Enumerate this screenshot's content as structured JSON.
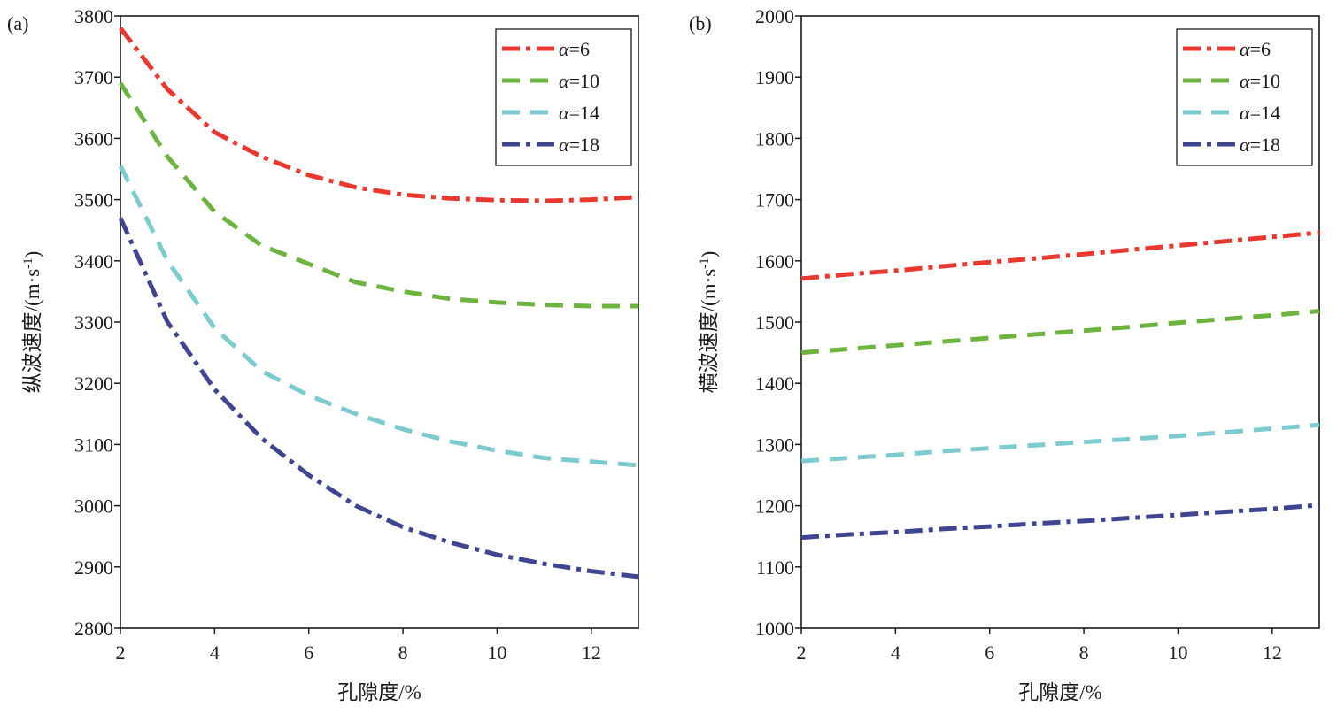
{
  "chart_data": [
    {
      "panel_label": "(a)",
      "type": "line",
      "xlabel": "孔隙度/%",
      "ylabel_main": "纵波速度/(m·s",
      "ylabel_sup": "-1",
      "ylabel_close": ")",
      "xlim": [
        2,
        13
      ],
      "ylim": [
        2800,
        3800
      ],
      "xticks": [
        2,
        4,
        6,
        8,
        10,
        12
      ],
      "yticks": [
        2800,
        2900,
        3000,
        3100,
        3200,
        3300,
        3400,
        3500,
        3600,
        3700,
        3800
      ],
      "legend_position": "top-right",
      "x": [
        2,
        3,
        4,
        5,
        6,
        7,
        8,
        9,
        10,
        11,
        12,
        13
      ],
      "series": [
        {
          "name": "α=6",
          "legend_symbol": "α",
          "legend_value": "=6",
          "color": "#e8382f",
          "dash": "dashdot",
          "values": [
            3780,
            3680,
            3610,
            3570,
            3540,
            3520,
            3508,
            3502,
            3499,
            3498,
            3500,
            3504
          ]
        },
        {
          "name": "α=10",
          "legend_symbol": "α",
          "legend_value": "=10",
          "color": "#6db33f",
          "dash": "dashed",
          "values": [
            3690,
            3570,
            3480,
            3425,
            3395,
            3365,
            3350,
            3338,
            3332,
            3328,
            3326,
            3326
          ]
        },
        {
          "name": "α=14",
          "legend_symbol": "α",
          "legend_value": "=14",
          "color": "#7ecbcf",
          "dash": "dashed",
          "values": [
            3555,
            3400,
            3290,
            3220,
            3180,
            3150,
            3125,
            3105,
            3090,
            3078,
            3072,
            3066
          ]
        },
        {
          "name": "α=18",
          "legend_symbol": "α",
          "legend_value": "=18",
          "color": "#3f4590",
          "dash": "dashdot",
          "values": [
            3470,
            3300,
            3190,
            3110,
            3050,
            3000,
            2965,
            2940,
            2920,
            2905,
            2893,
            2884
          ]
        }
      ]
    },
    {
      "panel_label": "(b)",
      "type": "line",
      "xlabel": "孔隙度/%",
      "ylabel_main": "横波速度/(m·s",
      "ylabel_sup": "-1",
      "ylabel_close": ")",
      "xlim": [
        2,
        13
      ],
      "ylim": [
        1000,
        2000
      ],
      "xticks": [
        2,
        4,
        6,
        8,
        10,
        12
      ],
      "yticks": [
        1000,
        1100,
        1200,
        1300,
        1400,
        1500,
        1600,
        1700,
        1800,
        1900,
        2000
      ],
      "legend_position": "top-right",
      "x": [
        2,
        3,
        4,
        5,
        6,
        7,
        8,
        9,
        10,
        11,
        12,
        13
      ],
      "series": [
        {
          "name": "α=6",
          "legend_symbol": "α",
          "legend_value": "=6",
          "color": "#e8382f",
          "dash": "dashdot",
          "values": [
            1571,
            1578,
            1584,
            1591,
            1598,
            1604,
            1611,
            1618,
            1625,
            1632,
            1639,
            1646
          ]
        },
        {
          "name": "α=10",
          "legend_symbol": "α",
          "legend_value": "=10",
          "color": "#6db33f",
          "dash": "dashed",
          "values": [
            1450,
            1456,
            1462,
            1468,
            1474,
            1480,
            1486,
            1492,
            1499,
            1505,
            1511,
            1518
          ]
        },
        {
          "name": "α=14",
          "legend_symbol": "α",
          "legend_value": "=14",
          "color": "#7ecbcf",
          "dash": "dashed",
          "values": [
            1273,
            1278,
            1283,
            1289,
            1294,
            1299,
            1304,
            1309,
            1314,
            1320,
            1326,
            1332
          ]
        },
        {
          "name": "α=18",
          "legend_symbol": "α",
          "legend_value": "=18",
          "color": "#3f4590",
          "dash": "dashdot",
          "values": [
            1148,
            1153,
            1157,
            1162,
            1166,
            1171,
            1175,
            1180,
            1185,
            1190,
            1195,
            1201
          ]
        }
      ]
    }
  ]
}
